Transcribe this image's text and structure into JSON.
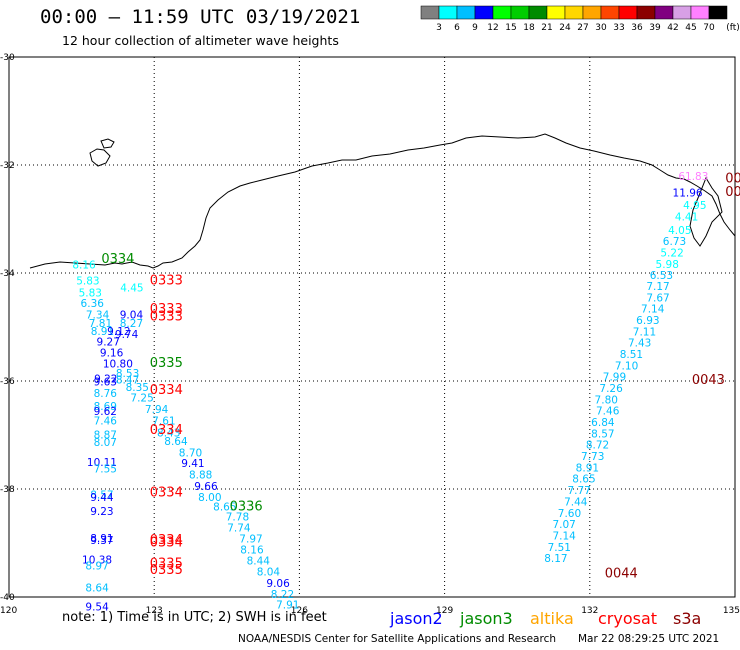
{
  "header": {
    "title": "00:00 – 11:59 UTC 03/19/2021",
    "subtitle": "12 hour collection of altimeter wave heights"
  },
  "colorbar": {
    "unit": "(ft)",
    "colors": [
      "#808080",
      "#00ffff",
      "#00bfff",
      "#0000ff",
      "#00ff00",
      "#00cd00",
      "#008b00",
      "#ffff00",
      "#ffd700",
      "#ffa500",
      "#ff4500",
      "#ff0000",
      "#8b0000",
      "#800080",
      "#d8a0e6",
      "#ff80ff",
      "#000000"
    ],
    "labels": [
      "3",
      "6",
      "9",
      "12",
      "15",
      "18",
      "21",
      "24",
      "27",
      "30",
      "33",
      "36",
      "39",
      "42",
      "45",
      "70"
    ]
  },
  "axes": {
    "lon_labels": [
      "120",
      "123",
      "126",
      "129",
      "132",
      "135"
    ],
    "lat_labels": [
      "-30",
      "-32",
      "-34",
      "-36",
      "-38",
      "-40"
    ]
  },
  "swh_labels": [
    {
      "text": "8.16",
      "lon": 121.55,
      "lat": -33.84,
      "color": "#00ffff"
    },
    {
      "text": "5.83",
      "lon": 121.63,
      "lat": -34.14,
      "color": "#00ffff"
    },
    {
      "text": "5.83",
      "lon": 121.68,
      "lat": -34.36,
      "color": "#00ffff"
    },
    {
      "text": "4.45",
      "lon": 122.54,
      "lat": -34.27,
      "color": "#00ffff"
    },
    {
      "text": "6.36",
      "lon": 121.72,
      "lat": -34.56,
      "color": "#00bfff"
    },
    {
      "text": "7.34",
      "lon": 121.83,
      "lat": -34.77,
      "color": "#00bfff"
    },
    {
      "text": "9.04",
      "lon": 122.53,
      "lat": -34.77,
      "color": "#0000ff"
    },
    {
      "text": "7.81",
      "lon": 121.89,
      "lat": -34.93,
      "color": "#00bfff"
    },
    {
      "text": "8.27",
      "lon": 122.53,
      "lat": -34.93,
      "color": "#00bfff"
    },
    {
      "text": "8.91",
      "lon": 121.93,
      "lat": -35.07,
      "color": "#00bfff"
    },
    {
      "text": "9.12",
      "lon": 122.27,
      "lat": -35.07,
      "color": "#0000ff"
    },
    {
      "text": "9.74",
      "lon": 122.43,
      "lat": -35.13,
      "color": "#0000ff"
    },
    {
      "text": "9.27",
      "lon": 122.05,
      "lat": -35.27,
      "color": "#0000ff"
    },
    {
      "text": "9.16",
      "lon": 122.12,
      "lat": -35.47,
      "color": "#0000ff"
    },
    {
      "text": "10.80",
      "lon": 122.25,
      "lat": -35.68,
      "color": "#0000ff"
    },
    {
      "text": "8.53",
      "lon": 122.45,
      "lat": -35.85,
      "color": "#00bfff"
    },
    {
      "text": "9.22",
      "lon": 122.0,
      "lat": -35.95,
      "color": "#0000ff"
    },
    {
      "text": "8.47",
      "lon": 122.45,
      "lat": -35.97,
      "color": "#00bfff"
    },
    {
      "text": "9.63",
      "lon": 121.99,
      "lat": -36.01,
      "color": "#0000ff"
    },
    {
      "text": "8.35",
      "lon": 122.65,
      "lat": -36.11,
      "color": "#00bfff"
    },
    {
      "text": "8.76",
      "lon": 121.99,
      "lat": -36.22,
      "color": "#00bfff"
    },
    {
      "text": "7.25",
      "lon": 122.75,
      "lat": -36.31,
      "color": "#00bfff"
    },
    {
      "text": "8.69",
      "lon": 121.99,
      "lat": -36.46,
      "color": "#00bfff"
    },
    {
      "text": "7.94",
      "lon": 123.05,
      "lat": -36.52,
      "color": "#00bfff"
    },
    {
      "text": "9.62",
      "lon": 121.99,
      "lat": -36.56,
      "color": "#0000ff"
    },
    {
      "text": "7.46",
      "lon": 121.99,
      "lat": -36.73,
      "color": "#00bfff"
    },
    {
      "text": "7.61",
      "lon": 123.2,
      "lat": -36.73,
      "color": "#00bfff"
    },
    {
      "text": "8.43",
      "lon": 123.3,
      "lat": -36.95,
      "color": "#00bfff"
    },
    {
      "text": "8.87",
      "lon": 121.99,
      "lat": -36.99,
      "color": "#00bfff"
    },
    {
      "text": "8.64",
      "lon": 123.45,
      "lat": -37.11,
      "color": "#00bfff"
    },
    {
      "text": "8.07",
      "lon": 121.99,
      "lat": -37.13,
      "color": "#00bfff"
    },
    {
      "text": "8.70",
      "lon": 123.75,
      "lat": -37.32,
      "color": "#00bfff"
    },
    {
      "text": "10.11",
      "lon": 121.92,
      "lat": -37.5,
      "color": "#0000ff"
    },
    {
      "text": "9.41",
      "lon": 123.8,
      "lat": -37.52,
      "color": "#0000ff"
    },
    {
      "text": "7.55",
      "lon": 121.99,
      "lat": -37.62,
      "color": "#00bfff"
    },
    {
      "text": "8.88",
      "lon": 123.96,
      "lat": -37.73,
      "color": "#00bfff"
    },
    {
      "text": "9.66",
      "lon": 124.07,
      "lat": -37.94,
      "color": "#0000ff"
    },
    {
      "text": "8.57",
      "lon": 121.92,
      "lat": -38.1,
      "color": "#00bfff"
    },
    {
      "text": "9.44",
      "lon": 121.92,
      "lat": -38.15,
      "color": "#0000ff"
    },
    {
      "text": "8.00",
      "lon": 124.15,
      "lat": -38.15,
      "color": "#00bfff"
    },
    {
      "text": "8.65",
      "lon": 124.46,
      "lat": -38.32,
      "color": "#00bfff"
    },
    {
      "text": "9.23",
      "lon": 121.92,
      "lat": -38.41,
      "color": "#0000ff"
    },
    {
      "text": "7.78",
      "lon": 124.72,
      "lat": -38.51,
      "color": "#00bfff"
    },
    {
      "text": "7.74",
      "lon": 124.75,
      "lat": -38.71,
      "color": "#00bfff"
    },
    {
      "text": "8.91",
      "lon": 121.92,
      "lat": -38.91,
      "color": "#0000ff"
    },
    {
      "text": "9.37",
      "lon": 121.92,
      "lat": -38.94,
      "color": "#0000ff"
    },
    {
      "text": "7.97",
      "lon": 125.0,
      "lat": -38.92,
      "color": "#00bfff"
    },
    {
      "text": "8.16",
      "lon": 125.02,
      "lat": -39.12,
      "color": "#00bfff"
    },
    {
      "text": "10.38",
      "lon": 121.82,
      "lat": -39.31,
      "color": "#0000ff"
    },
    {
      "text": "8.44",
      "lon": 125.15,
      "lat": -39.32,
      "color": "#00bfff"
    },
    {
      "text": "8.97",
      "lon": 121.82,
      "lat": -39.42,
      "color": "#00bfff"
    },
    {
      "text": "8.04",
      "lon": 125.36,
      "lat": -39.53,
      "color": "#00bfff"
    },
    {
      "text": "9.06",
      "lon": 125.56,
      "lat": -39.74,
      "color": "#0000ff"
    },
    {
      "text": "8.64",
      "lon": 121.82,
      "lat": -39.82,
      "color": "#00bfff"
    },
    {
      "text": "8.22",
      "lon": 125.65,
      "lat": -39.94,
      "color": "#00bfff"
    },
    {
      "text": "7.91",
      "lon": 125.76,
      "lat": -40.14,
      "color": "#00bfff"
    },
    {
      "text": "9.54",
      "lon": 121.82,
      "lat": -40.18,
      "color": "#0000ff"
    },
    {
      "text": "61.83",
      "lon": 134.14,
      "lat": -32.2,
      "color": "#ff80ff"
    },
    {
      "text": "11.96",
      "lon": 134.02,
      "lat": -32.51,
      "color": "#0000ff"
    },
    {
      "text": "4.95",
      "lon": 134.17,
      "lat": -32.74,
      "color": "#00ffff"
    },
    {
      "text": "4.41",
      "lon": 134.0,
      "lat": -32.95,
      "color": "#00ffff"
    },
    {
      "text": "4.05",
      "lon": 133.86,
      "lat": -33.2,
      "color": "#00ffff"
    },
    {
      "text": "6.73",
      "lon": 133.75,
      "lat": -33.41,
      "color": "#00bfff"
    },
    {
      "text": "5.22",
      "lon": 133.7,
      "lat": -33.62,
      "color": "#00ffff"
    },
    {
      "text": "5.98",
      "lon": 133.6,
      "lat": -33.83,
      "color": "#00ffff"
    },
    {
      "text": "6.53",
      "lon": 133.48,
      "lat": -34.04,
      "color": "#00bfff"
    },
    {
      "text": "7.17",
      "lon": 133.41,
      "lat": -34.24,
      "color": "#00bfff"
    },
    {
      "text": "7.67",
      "lon": 133.41,
      "lat": -34.45,
      "color": "#00bfff"
    },
    {
      "text": "7.14",
      "lon": 133.3,
      "lat": -34.66,
      "color": "#00bfff"
    },
    {
      "text": "6.93",
      "lon": 133.2,
      "lat": -34.87,
      "color": "#00bfff"
    },
    {
      "text": "7.11",
      "lon": 133.13,
      "lat": -35.08,
      "color": "#00bfff"
    },
    {
      "text": "7.43",
      "lon": 133.03,
      "lat": -35.29,
      "color": "#00bfff"
    },
    {
      "text": "8.51",
      "lon": 132.86,
      "lat": -35.5,
      "color": "#00bfff"
    },
    {
      "text": "7.10",
      "lon": 132.76,
      "lat": -35.71,
      "color": "#00bfff"
    },
    {
      "text": "7.99",
      "lon": 132.51,
      "lat": -35.92,
      "color": "#00bfff"
    },
    {
      "text": "7.26",
      "lon": 132.44,
      "lat": -36.13,
      "color": "#00bfff"
    },
    {
      "text": "7.80",
      "lon": 132.34,
      "lat": -36.34,
      "color": "#00bfff"
    },
    {
      "text": "7.46",
      "lon": 132.37,
      "lat": -36.55,
      "color": "#00bfff"
    },
    {
      "text": "6.84",
      "lon": 132.27,
      "lat": -36.76,
      "color": "#00bfff"
    },
    {
      "text": "8.57",
      "lon": 132.27,
      "lat": -36.97,
      "color": "#00bfff"
    },
    {
      "text": "8.72",
      "lon": 132.16,
      "lat": -37.18,
      "color": "#00bfff"
    },
    {
      "text": "7.73",
      "lon": 132.06,
      "lat": -37.39,
      "color": "#00bfff"
    },
    {
      "text": "8.91",
      "lon": 131.95,
      "lat": -37.6,
      "color": "#00bfff"
    },
    {
      "text": "8.65",
      "lon": 131.88,
      "lat": -37.81,
      "color": "#00bfff"
    },
    {
      "text": "7.77",
      "lon": 131.78,
      "lat": -38.02,
      "color": "#00bfff"
    },
    {
      "text": "7.44",
      "lon": 131.71,
      "lat": -38.23,
      "color": "#00bfff"
    },
    {
      "text": "7.60",
      "lon": 131.58,
      "lat": -38.44,
      "color": "#00bfff"
    },
    {
      "text": "7.07",
      "lon": 131.47,
      "lat": -38.65,
      "color": "#00bfff"
    },
    {
      "text": "7.14",
      "lon": 131.47,
      "lat": -38.86,
      "color": "#00bfff"
    },
    {
      "text": "7.51",
      "lon": 131.37,
      "lat": -39.07,
      "color": "#00bfff"
    },
    {
      "text": "8.17",
      "lon": 131.3,
      "lat": -39.28,
      "color": "#00bfff"
    }
  ],
  "pass_labels": [
    {
      "text": "0334",
      "lon": 122.25,
      "lat": -33.72,
      "color": "#008b00"
    },
    {
      "text": "0333",
      "lon": 123.25,
      "lat": -34.12,
      "color": "#ff0000"
    },
    {
      "text": "0333",
      "lon": 123.25,
      "lat": -34.65,
      "color": "#ff0000"
    },
    {
      "text": "0333",
      "lon": 123.25,
      "lat": -34.79,
      "color": "#ff0000"
    },
    {
      "text": "0335",
      "lon": 123.25,
      "lat": -35.65,
      "color": "#008b00"
    },
    {
      "text": "0334",
      "lon": 123.25,
      "lat": -36.15,
      "color": "#ff0000"
    },
    {
      "text": "0334",
      "lon": 123.25,
      "lat": -36.89,
      "color": "#ff0000"
    },
    {
      "text": "0334",
      "lon": 123.25,
      "lat": -38.05,
      "color": "#ff0000"
    },
    {
      "text": "0336",
      "lon": 124.9,
      "lat": -38.31,
      "color": "#008b00"
    },
    {
      "text": "0334",
      "lon": 123.25,
      "lat": -38.93,
      "color": "#ff0000"
    },
    {
      "text": "0334",
      "lon": 123.25,
      "lat": -38.97,
      "color": "#ff0000"
    },
    {
      "text": "0335",
      "lon": 123.25,
      "lat": -39.36,
      "color": "#ff0000"
    },
    {
      "text": "0335",
      "lon": 123.25,
      "lat": -39.48,
      "color": "#ff0000"
    },
    {
      "text": "0043",
      "lon": 134.45,
      "lat": -35.96,
      "color": "#8b0000"
    },
    {
      "text": "0044",
      "lon": 132.65,
      "lat": -39.55,
      "color": "#8b0000"
    },
    {
      "text": "00",
      "lon": 134.97,
      "lat": -32.23,
      "color": "#8b0000"
    },
    {
      "text": "00",
      "lon": 134.97,
      "lat": -32.48,
      "color": "#8b0000"
    }
  ],
  "footer": {
    "note": "note: 1) Time is in UTC; 2) SWH is in feet",
    "satellites": [
      {
        "name": "jason2",
        "color": "#0000ff"
      },
      {
        "name": "jason3",
        "color": "#008b00"
      },
      {
        "name": "altika",
        "color": "#ffa500"
      },
      {
        "name": "cryosat",
        "color": "#ff0000"
      },
      {
        "name": "s3a",
        "color": "#8b0000"
      }
    ],
    "credit": "NOAA/NESDIS Center for Satellite Applications and Research",
    "timestamp": "Mar 22 08:29:25 UTC 2021"
  }
}
